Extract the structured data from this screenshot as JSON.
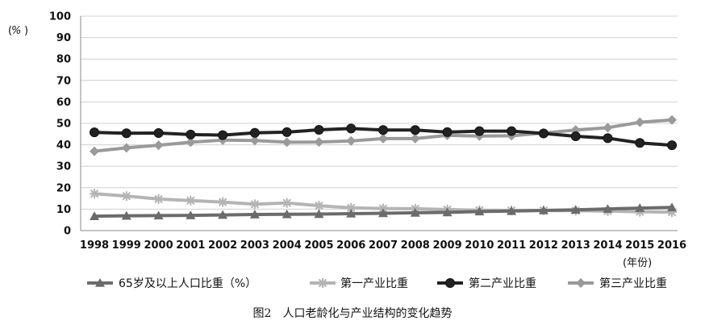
{
  "chart_data": {
    "type": "line",
    "ylabel": "%",
    "xlabel": "(年份)",
    "ylim": [
      0,
      100
    ],
    "yticks": [
      0,
      10,
      20,
      30,
      40,
      50,
      60,
      70,
      80,
      90,
      100
    ],
    "grid": true,
    "legend_position": "bottom",
    "categories": [
      "1998",
      "1999",
      "2000",
      "2001",
      "2002",
      "2003",
      "2004",
      "2005",
      "2006",
      "2007",
      "2008",
      "2009",
      "2010",
      "2011",
      "2012",
      "2013",
      "2014",
      "2015",
      "2016"
    ],
    "series": [
      {
        "name": "65岁及以上人口比重（%）",
        "color": "#6b6b6b",
        "marker": "triangle",
        "values": [
          6.7,
          6.9,
          7.0,
          7.1,
          7.3,
          7.5,
          7.6,
          7.7,
          7.9,
          8.1,
          8.3,
          8.5,
          8.9,
          9.1,
          9.4,
          9.7,
          10.1,
          10.5,
          10.8
        ]
      },
      {
        "name": "第一产业比重",
        "color": "#b4b4b4",
        "marker": "star",
        "values": [
          17.2,
          16.1,
          14.7,
          14.0,
          13.3,
          12.3,
          12.9,
          11.6,
          10.6,
          10.3,
          10.2,
          9.8,
          9.5,
          9.4,
          9.4,
          9.3,
          9.1,
          8.8,
          8.6
        ]
      },
      {
        "name": "第二产业比重",
        "color": "#222222",
        "marker": "circle",
        "values": [
          45.8,
          45.4,
          45.5,
          44.8,
          44.5,
          45.6,
          45.9,
          47.0,
          47.6,
          46.9,
          46.9,
          45.9,
          46.4,
          46.4,
          45.3,
          44.0,
          43.1,
          40.9,
          39.8
        ]
      },
      {
        "name": "第三产业比重",
        "color": "#9a9a9a",
        "marker": "diamond",
        "values": [
          37.0,
          38.6,
          39.8,
          41.2,
          42.2,
          42.0,
          41.2,
          41.3,
          41.8,
          42.9,
          42.9,
          44.4,
          44.1,
          44.2,
          45.5,
          46.9,
          48.0,
          50.5,
          51.6
        ]
      }
    ],
    "caption": "图2　人口老龄化与产业结构的变化趋势"
  }
}
